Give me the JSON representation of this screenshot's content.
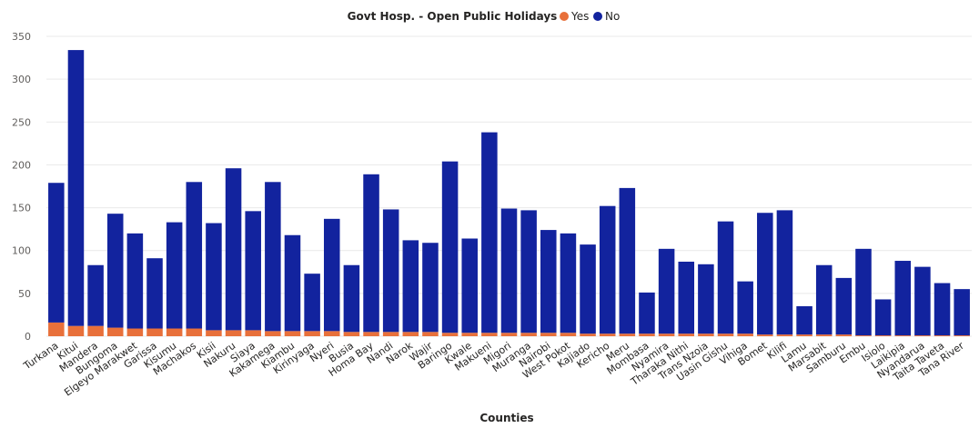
{
  "chart_data": {
    "type": "bar",
    "stacked": true,
    "title": "Govt Hosp. - Open Public Holidays",
    "xlabel": "Counties",
    "ylabel": "",
    "ylim": [
      0,
      350
    ],
    "yticks": [
      0,
      50,
      100,
      150,
      200,
      250,
      300,
      350
    ],
    "grid": true,
    "legend_position": "top",
    "categories": [
      "Turkana",
      "Kitui",
      "Mandera",
      "Bungoma",
      "Elgeyo Marakwet",
      "Garissa",
      "Kisumu",
      "Machakos",
      "Kisii",
      "Nakuru",
      "Siaya",
      "Kakamega",
      "Kiambu",
      "Kirinyaga",
      "Nyeri",
      "Busia",
      "Homa Bay",
      "Nandi",
      "Narok",
      "Wajir",
      "Baringo",
      "Kwale",
      "Makueni",
      "Migori",
      "Muranga",
      "Nairobi",
      "West Pokot",
      "Kajiado",
      "Kericho",
      "Meru",
      "Mombasa",
      "Nyamira",
      "Tharaka Nithi",
      "Trans Nzoia",
      "Uasin Gishu",
      "Vihiga",
      "Bomet",
      "Kilifi",
      "Lamu",
      "Marsabit",
      "Samburu",
      "Embu",
      "Isiolo",
      "Laikipia",
      "Nyandarua",
      "Taita Taveta",
      "Tana River"
    ],
    "series": [
      {
        "name": "Yes",
        "color": "#e8703a",
        "values": [
          16,
          12,
          12,
          10,
          9,
          9,
          9,
          9,
          7,
          7,
          7,
          6,
          6,
          6,
          6,
          5,
          5,
          5,
          5,
          5,
          4,
          4,
          4,
          4,
          4,
          4,
          4,
          3,
          3,
          3,
          3,
          3,
          3,
          3,
          3,
          3,
          2,
          2,
          2,
          2,
          2,
          1,
          1,
          1,
          1,
          1,
          1
        ]
      },
      {
        "name": "No",
        "color": "#12239e",
        "values": [
          163,
          322,
          71,
          133,
          111,
          82,
          124,
          171,
          125,
          189,
          139,
          174,
          112,
          67,
          131,
          78,
          184,
          143,
          107,
          104,
          200,
          110,
          234,
          145,
          143,
          120,
          116,
          104,
          149,
          170,
          48,
          99,
          84,
          81,
          131,
          61,
          142,
          145,
          33,
          81,
          66,
          101,
          42,
          87,
          80,
          61,
          54
        ]
      }
    ]
  }
}
